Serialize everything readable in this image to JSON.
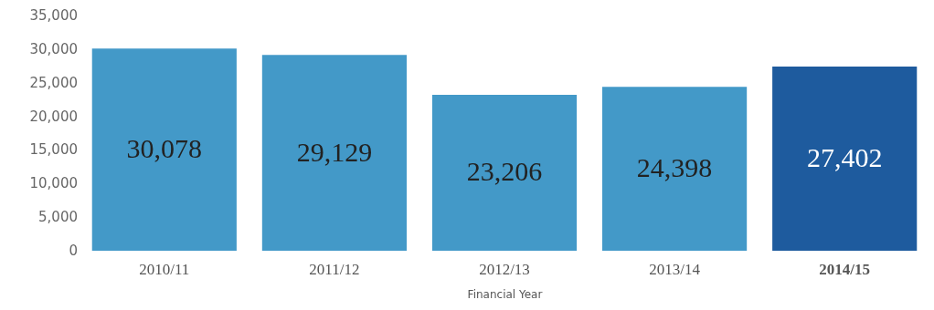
{
  "chart_data": {
    "type": "bar",
    "xlabel": "Financial Year",
    "categories": [
      "2010/11",
      "2011/12",
      "2012/13",
      "2013/14",
      "2014/15"
    ],
    "values": [
      30078,
      29129,
      23206,
      24398,
      27402
    ],
    "colors": [
      "#4399c8",
      "#4399c8",
      "#4399c8",
      "#4399c8",
      "#1e5b9e"
    ],
    "ylim": [
      0,
      35000
    ],
    "yticks": [
      0,
      {
        "value": 5000,
        "label": "5,000"
      },
      {
        "value": 10000,
        "label": "10,000"
      },
      {
        "value": 15000,
        "label": "15,000"
      },
      {
        "value": 20000,
        "label": "20,000"
      },
      {
        "value": 25000,
        "label": "25,000"
      },
      {
        "value": 30000,
        "label": "30,000"
      },
      {
        "value": 35000,
        "label": "35,000"
      }
    ],
    "value_labels": [
      "30,078",
      "29,129",
      "23,206",
      "24,398",
      "27,402"
    ]
  }
}
